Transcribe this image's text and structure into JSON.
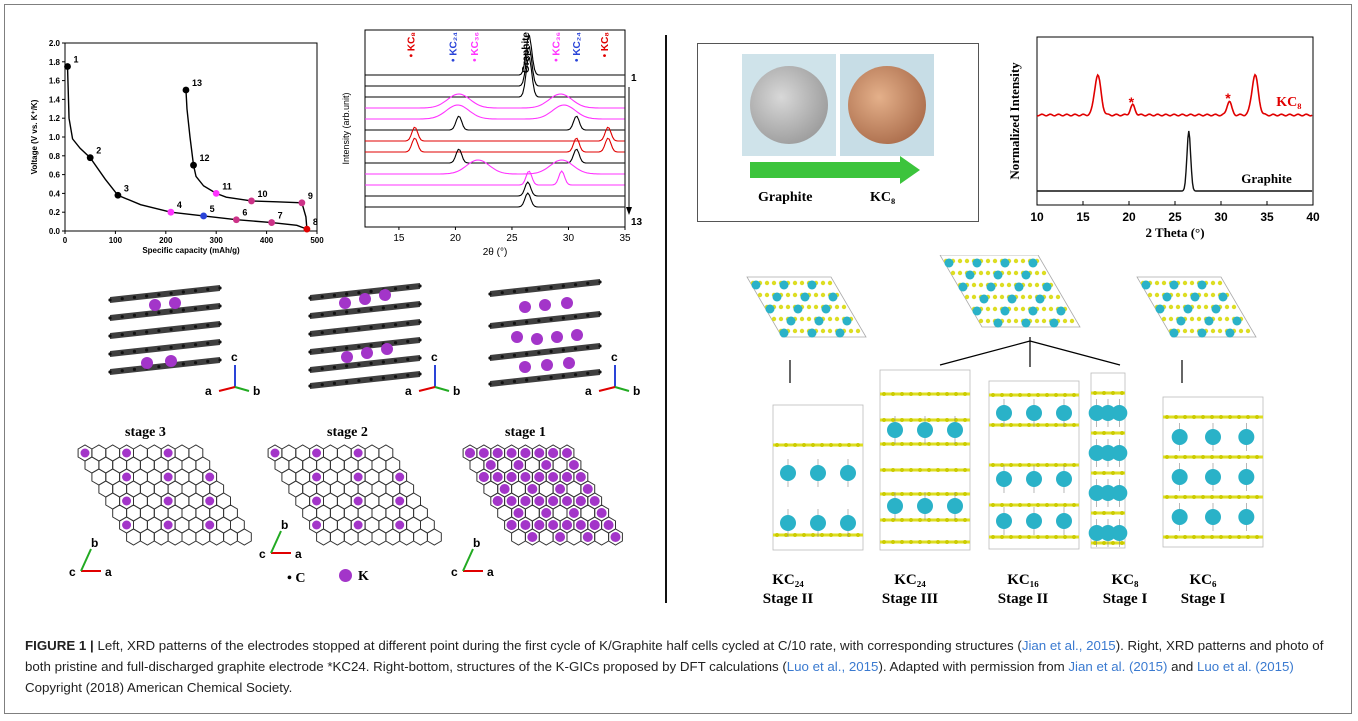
{
  "left": {
    "voltage": {
      "ylabel": "Voltage (V vs. K⁺/K)",
      "xlabel": "Specific capacity (mAh/g)",
      "yticks": [
        "0.0",
        "0.2",
        "0.4",
        "0.6",
        "0.8",
        "1.0",
        "1.2",
        "1.4",
        "1.6",
        "1.8",
        "2.0"
      ],
      "xticks": [
        "0",
        "100",
        "200",
        "300",
        "400",
        "500"
      ],
      "points": [
        {
          "label": "1",
          "cap": 5,
          "v": 1.75,
          "color": "#000000"
        },
        {
          "label": "2",
          "cap": 50,
          "v": 0.78,
          "color": "#000000"
        },
        {
          "label": "3",
          "cap": 105,
          "v": 0.38,
          "color": "#000000"
        },
        {
          "label": "4",
          "cap": 210,
          "v": 0.2,
          "color": "#ff33ff"
        },
        {
          "label": "5",
          "cap": 275,
          "v": 0.16,
          "color": "#2a44d8"
        },
        {
          "label": "6",
          "cap": 340,
          "v": 0.12,
          "color": "#cc3388"
        },
        {
          "label": "7",
          "cap": 410,
          "v": 0.09,
          "color": "#cc3388"
        },
        {
          "label": "8",
          "cap": 480,
          "v": 0.02,
          "color": "#e00000"
        },
        {
          "label": "9",
          "cap": 470,
          "v": 0.3,
          "color": "#cc3388"
        },
        {
          "label": "10",
          "cap": 370,
          "v": 0.32,
          "color": "#cc3388"
        },
        {
          "label": "11",
          "cap": 300,
          "v": 0.4,
          "color": "#ff33ff"
        },
        {
          "label": "12",
          "cap": 255,
          "v": 0.7,
          "color": "#000000"
        },
        {
          "label": "13",
          "cap": 240,
          "v": 1.5,
          "color": "#000000"
        }
      ]
    },
    "xrd": {
      "ylabel": "Intensity (arb.unit)",
      "xlabel": "2θ (°)",
      "xticks": [
        "15",
        "20",
        "25",
        "30",
        "35"
      ],
      "top_labels": [
        {
          "text": "• KC₈",
          "color": "#e00000",
          "pos": 16.4
        },
        {
          "text": "• KC₂₄",
          "color": "#2a44d8",
          "pos": 20.1
        },
        {
          "text": "• KC₃₆",
          "color": "#ff33ff",
          "pos": 22.0
        },
        {
          "text": "Graphite",
          "color": "#000000",
          "pos": 26.5
        },
        {
          "text": "• KC₃₆",
          "color": "#ff33ff",
          "pos": 29.2
        },
        {
          "text": "• KC₂₄",
          "color": "#2a44d8",
          "pos": 31.0
        },
        {
          "text": "• KC₈",
          "color": "#e00000",
          "pos": 33.5
        }
      ],
      "start_label": "1",
      "end_label": "13"
    },
    "stages": [
      "stage 3",
      "stage 2",
      "stage 1"
    ],
    "axes": {
      "a": "a",
      "b": "b",
      "c": "c"
    },
    "legend": {
      "c": "C",
      "k": "K"
    }
  },
  "right": {
    "photo": {
      "left": "Graphite",
      "right": "KC₈"
    },
    "xrd": {
      "ylabel": "Normalized Intensity",
      "xlabel": "2 Theta (°)",
      "xticks": [
        "10",
        "15",
        "20",
        "25",
        "30",
        "35",
        "40"
      ],
      "kc8_label": "KC₈",
      "graphite_label": "Graphite"
    },
    "structures": [
      {
        "formula": "KC₂₄",
        "stage": "Stage II"
      },
      {
        "formula": "KC₂₄",
        "stage": "Stage III"
      },
      {
        "formula": "KC₁₆",
        "stage": "Stage II"
      },
      {
        "formula": "KC₈",
        "stage": "Stage I"
      },
      {
        "formula": "KC₆",
        "stage": "Stage I"
      }
    ]
  },
  "caption": {
    "lead": "FIGURE 1 |",
    "t1": " Left, XRD patterns of the electrodes stopped at different point during the first cycle of K/Graphite half cells cycled at C/10 rate, with corresponding structures (",
    "r1": "Jian et al., 2015",
    "t2": "). Right, XRD patterns and photo of both pristine and full-discharged graphite electrode *KC24. Right-bottom, structures of the K-GICs proposed by DFT calculations (",
    "r2": "Luo et al., 2015",
    "t3": "). Adapted with permission from ",
    "r3": "Jian et al. (2015)",
    "t4": " and ",
    "r4": "Luo et al. (2015)",
    "t5": " Copyright (2018) American Chemical Society."
  }
}
